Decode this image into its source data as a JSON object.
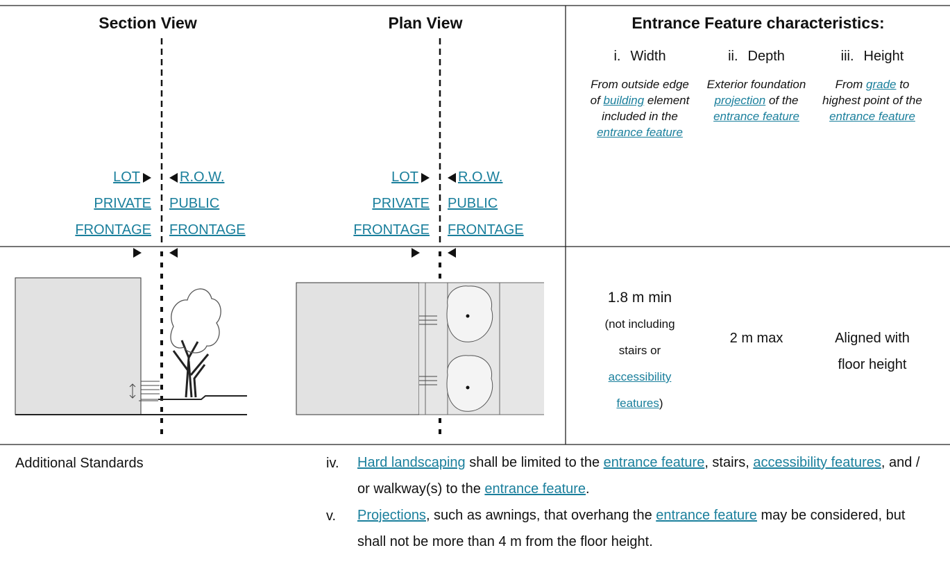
{
  "header": {
    "section_view": "Section View",
    "plan_view": "Plan View",
    "characteristics_title": "Entrance Feature characteristics:"
  },
  "section_labels": {
    "lot": "LOT",
    "row": "R.O.W.",
    "private_frontage": "PRIVATE FRONTAGE",
    "public_frontage": "PUBLIC FRONTAGE"
  },
  "plan_labels": {
    "lot": "LOT",
    "row": "R.O.W.",
    "private_frontage": "PRIVATE FRONTAGE",
    "public_frontage": "PUBLIC FRONTAGE"
  },
  "characteristics": [
    {
      "numeral": "i.",
      "name": "Width",
      "description": [
        {
          "text": "From outside edge of "
        },
        {
          "text": "building",
          "link": true
        },
        {
          "text": " element included in the "
        },
        {
          "text": "entrance feature",
          "link": true
        }
      ]
    },
    {
      "numeral": "ii.",
      "name": "Depth",
      "description": [
        {
          "text": "Exterior foundation "
        },
        {
          "text": "projection",
          "link": true
        },
        {
          "text": " of the "
        },
        {
          "text": "entrance feature",
          "link": true
        }
      ]
    },
    {
      "numeral": "iii.",
      "name": "Height",
      "description": [
        {
          "text": "From "
        },
        {
          "text": "grade",
          "link": true
        },
        {
          "text": " to highest point of the "
        },
        {
          "text": "entrance feature",
          "link": true
        }
      ]
    }
  ],
  "requirements": [
    {
      "main": "1.8 m min",
      "note": [
        {
          "text": "(not including stairs or "
        },
        {
          "text": "accessibility features",
          "link": true
        },
        {
          "text": ")"
        }
      ]
    },
    {
      "main": "2 m max"
    },
    {
      "main": "Aligned with floor height"
    }
  ],
  "additional_standards": {
    "label": "Additional Standards",
    "items": [
      {
        "numeral": "iv.",
        "text": [
          {
            "text": "Hard landscaping",
            "link": true
          },
          {
            "text": " shall be limited to the "
          },
          {
            "text": "entrance feature",
            "link": true
          },
          {
            "text": ", stairs, "
          },
          {
            "text": "accessibility features",
            "link": true
          },
          {
            "text": ", and / or walkway(s) to the "
          },
          {
            "text": "entrance feature",
            "link": true
          },
          {
            "text": "."
          }
        ]
      },
      {
        "numeral": "v.",
        "text": [
          {
            "text": "Projections",
            "link": true
          },
          {
            "text": ", such as awnings, that overhang the "
          },
          {
            "text": "entrance feature",
            "link": true
          },
          {
            "text": " may be considered, but shall not be more than 4 m from the floor height."
          }
        ]
      }
    ]
  }
}
